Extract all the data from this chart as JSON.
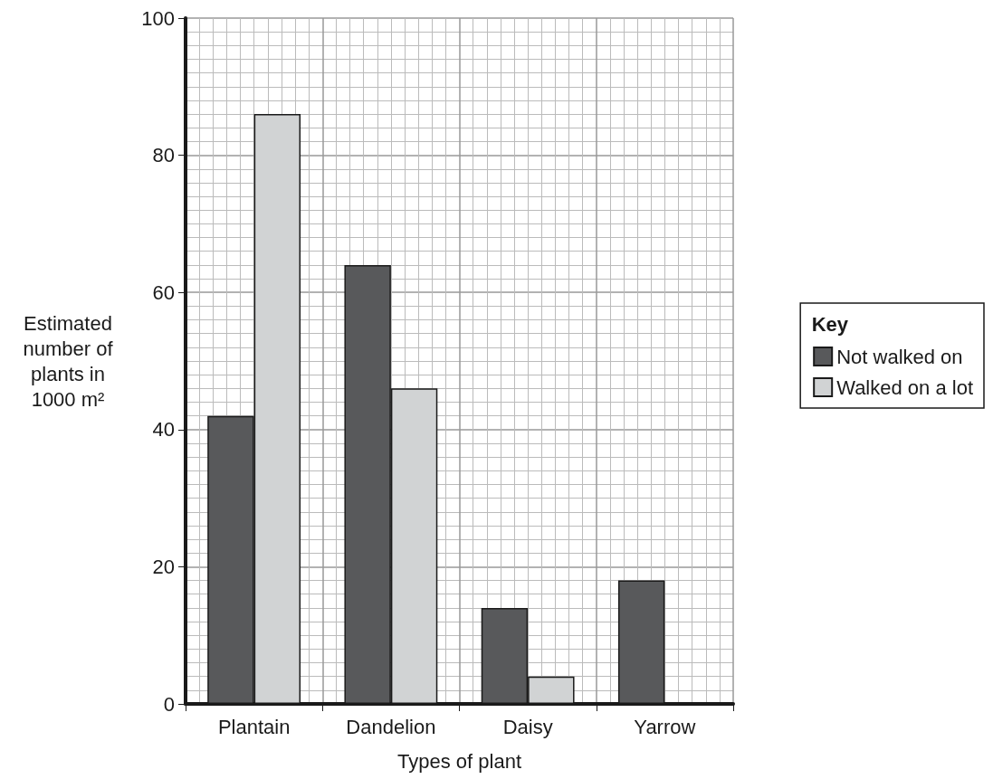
{
  "chart_data": {
    "type": "bar",
    "xlabel": "Types of plant",
    "ylabel": "Estimated\nnumber of\nplants in\n1000 m²",
    "legend_title": "Key",
    "categories": [
      "Plantain",
      "Dandelion",
      "Daisy",
      "Yarrow"
    ],
    "series": [
      {
        "name": "Not walked on",
        "color": "#58595b",
        "values": [
          42,
          64,
          14,
          18
        ]
      },
      {
        "name": "Walked on a lot",
        "color": "#d1d3d4",
        "values": [
          86,
          46,
          4,
          0
        ]
      }
    ],
    "ylim": [
      0,
      100
    ],
    "yticks": [
      0,
      20,
      40,
      60,
      80,
      100
    ],
    "grid": true,
    "legend": "right"
  }
}
